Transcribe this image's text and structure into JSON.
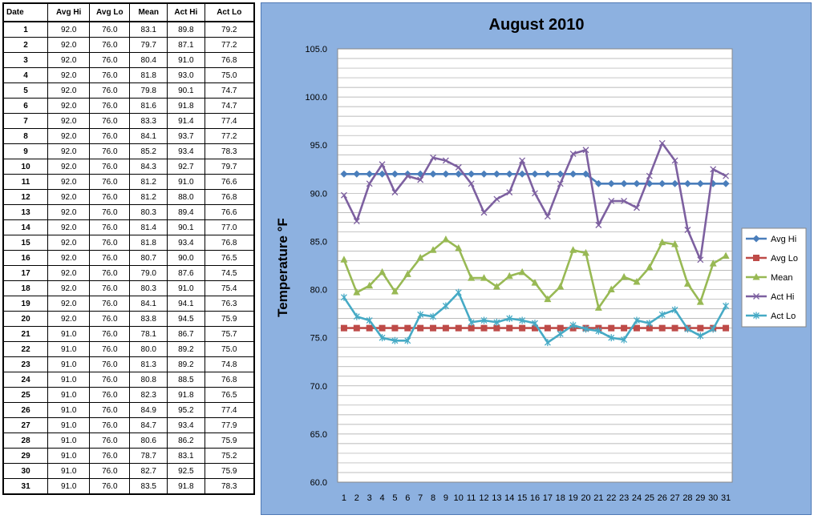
{
  "table": {
    "headers": [
      "Date",
      "Avg Hi",
      "Avg Lo",
      "Mean",
      "Act Hi",
      "Act Lo"
    ],
    "rows": [
      [
        "1",
        "92.0",
        "76.0",
        "83.1",
        "89.8",
        "79.2"
      ],
      [
        "2",
        "92.0",
        "76.0",
        "79.7",
        "87.1",
        "77.2"
      ],
      [
        "3",
        "92.0",
        "76.0",
        "80.4",
        "91.0",
        "76.8"
      ],
      [
        "4",
        "92.0",
        "76.0",
        "81.8",
        "93.0",
        "75.0"
      ],
      [
        "5",
        "92.0",
        "76.0",
        "79.8",
        "90.1",
        "74.7"
      ],
      [
        "6",
        "92.0",
        "76.0",
        "81.6",
        "91.8",
        "74.7"
      ],
      [
        "7",
        "92.0",
        "76.0",
        "83.3",
        "91.4",
        "77.4"
      ],
      [
        "8",
        "92.0",
        "76.0",
        "84.1",
        "93.7",
        "77.2"
      ],
      [
        "9",
        "92.0",
        "76.0",
        "85.2",
        "93.4",
        "78.3"
      ],
      [
        "10",
        "92.0",
        "76.0",
        "84.3",
        "92.7",
        "79.7"
      ],
      [
        "11",
        "92.0",
        "76.0",
        "81.2",
        "91.0",
        "76.6"
      ],
      [
        "12",
        "92.0",
        "76.0",
        "81.2",
        "88.0",
        "76.8"
      ],
      [
        "13",
        "92.0",
        "76.0",
        "80.3",
        "89.4",
        "76.6"
      ],
      [
        "14",
        "92.0",
        "76.0",
        "81.4",
        "90.1",
        "77.0"
      ],
      [
        "15",
        "92.0",
        "76.0",
        "81.8",
        "93.4",
        "76.8"
      ],
      [
        "16",
        "92.0",
        "76.0",
        "80.7",
        "90.0",
        "76.5"
      ],
      [
        "17",
        "92.0",
        "76.0",
        "79.0",
        "87.6",
        "74.5"
      ],
      [
        "18",
        "92.0",
        "76.0",
        "80.3",
        "91.0",
        "75.4"
      ],
      [
        "19",
        "92.0",
        "76.0",
        "84.1",
        "94.1",
        "76.3"
      ],
      [
        "20",
        "92.0",
        "76.0",
        "83.8",
        "94.5",
        "75.9"
      ],
      [
        "21",
        "91.0",
        "76.0",
        "78.1",
        "86.7",
        "75.7"
      ],
      [
        "22",
        "91.0",
        "76.0",
        "80.0",
        "89.2",
        "75.0"
      ],
      [
        "23",
        "91.0",
        "76.0",
        "81.3",
        "89.2",
        "74.8"
      ],
      [
        "24",
        "91.0",
        "76.0",
        "80.8",
        "88.5",
        "76.8"
      ],
      [
        "25",
        "91.0",
        "76.0",
        "82.3",
        "91.8",
        "76.5"
      ],
      [
        "26",
        "91.0",
        "76.0",
        "84.9",
        "95.2",
        "77.4"
      ],
      [
        "27",
        "91.0",
        "76.0",
        "84.7",
        "93.4",
        "77.9"
      ],
      [
        "28",
        "91.0",
        "76.0",
        "80.6",
        "86.2",
        "75.9"
      ],
      [
        "29",
        "91.0",
        "76.0",
        "78.7",
        "83.1",
        "75.2"
      ],
      [
        "30",
        "91.0",
        "76.0",
        "82.7",
        "92.5",
        "75.9"
      ],
      [
        "31",
        "91.0",
        "76.0",
        "83.5",
        "91.8",
        "78.3"
      ]
    ]
  },
  "chart_data": {
    "type": "line",
    "title": "August 2010",
    "xlabel": "",
    "ylabel": "Temperature °F",
    "x": [
      "1",
      "2",
      "3",
      "4",
      "5",
      "6",
      "7",
      "8",
      "9",
      "10",
      "11",
      "12",
      "13",
      "14",
      "15",
      "16",
      "17",
      "18",
      "19",
      "20",
      "21",
      "22",
      "23",
      "24",
      "25",
      "26",
      "27",
      "28",
      "29",
      "30",
      "31"
    ],
    "ylim": [
      60,
      105
    ],
    "yticks": [
      "60.0",
      "65.0",
      "70.0",
      "75.0",
      "80.0",
      "85.0",
      "90.0",
      "95.0",
      "100.0",
      "105.0"
    ],
    "ytick_values": [
      60,
      65,
      70,
      75,
      80,
      85,
      90,
      95,
      100,
      105
    ],
    "grid": true,
    "legend_position": "right",
    "series": [
      {
        "name": "Avg Hi",
        "color": "#4a7ebb",
        "marker": "diamond",
        "values": [
          92,
          92,
          92,
          92,
          92,
          92,
          92,
          92,
          92,
          92,
          92,
          92,
          92,
          92,
          92,
          92,
          92,
          92,
          92,
          92,
          91,
          91,
          91,
          91,
          91,
          91,
          91,
          91,
          91,
          91,
          91
        ]
      },
      {
        "name": "Avg Lo",
        "color": "#be4b48",
        "marker": "square",
        "values": [
          76,
          76,
          76,
          76,
          76,
          76,
          76,
          76,
          76,
          76,
          76,
          76,
          76,
          76,
          76,
          76,
          76,
          76,
          76,
          76,
          76,
          76,
          76,
          76,
          76,
          76,
          76,
          76,
          76,
          76,
          76
        ]
      },
      {
        "name": "Mean",
        "color": "#98b954",
        "marker": "triangle",
        "values": [
          83.1,
          79.7,
          80.4,
          81.8,
          79.8,
          81.6,
          83.3,
          84.1,
          85.2,
          84.3,
          81.2,
          81.2,
          80.3,
          81.4,
          81.8,
          80.7,
          79.0,
          80.3,
          84.1,
          83.8,
          78.1,
          80.0,
          81.3,
          80.8,
          82.3,
          84.9,
          84.7,
          80.6,
          78.7,
          82.7,
          83.5
        ]
      },
      {
        "name": "Act Hi",
        "color": "#7d60a0",
        "marker": "x",
        "values": [
          89.8,
          87.1,
          91.0,
          93.0,
          90.1,
          91.8,
          91.4,
          93.7,
          93.4,
          92.7,
          91.0,
          88.0,
          89.4,
          90.1,
          93.4,
          90.0,
          87.6,
          91.0,
          94.1,
          94.5,
          86.7,
          89.2,
          89.2,
          88.5,
          91.8,
          95.2,
          93.4,
          86.2,
          83.1,
          92.5,
          91.8
        ]
      },
      {
        "name": "Act Lo",
        "color": "#46aac5",
        "marker": "star",
        "values": [
          79.2,
          77.2,
          76.8,
          75.0,
          74.7,
          74.7,
          77.4,
          77.2,
          78.3,
          79.7,
          76.6,
          76.8,
          76.6,
          77.0,
          76.8,
          76.5,
          74.5,
          75.4,
          76.3,
          75.9,
          75.7,
          75.0,
          74.8,
          76.8,
          76.5,
          77.4,
          77.9,
          75.9,
          75.2,
          75.9,
          78.3
        ]
      }
    ]
  }
}
